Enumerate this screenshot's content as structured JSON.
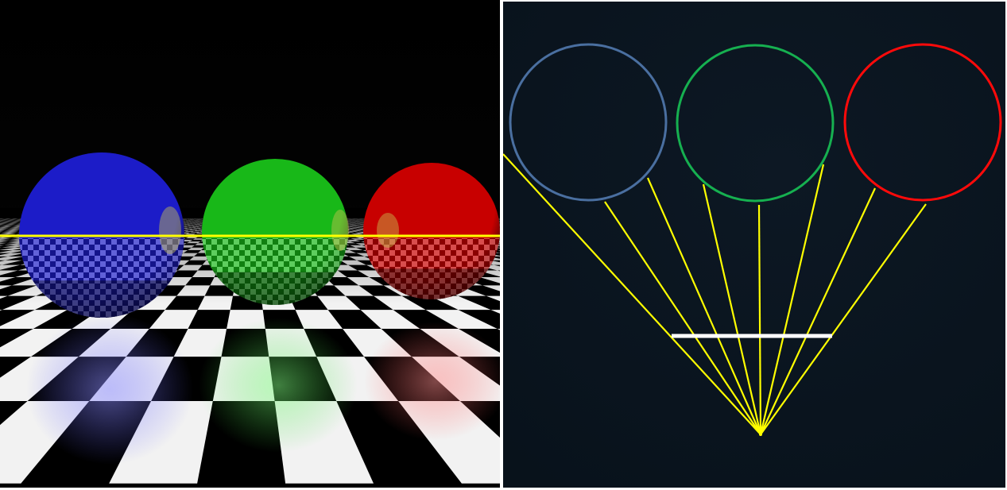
{
  "scene": {
    "spheres": [
      {
        "name": "blue-sphere",
        "color": "#1c1cc8"
      },
      {
        "name": "green-sphere",
        "color": "#18b818"
      },
      {
        "name": "red-sphere",
        "color": "#c80000"
      }
    ],
    "floor_colors": {
      "light": "#f2f2f2",
      "dark": "#000000"
    },
    "scanline_color": "#ffff00"
  },
  "diagram": {
    "background": "#0a1520",
    "circles": [
      {
        "name": "blue-circle",
        "color": "#4a6fa0"
      },
      {
        "name": "green-circle",
        "color": "#16b050"
      },
      {
        "name": "red-circle",
        "color": "#ff0a0a"
      }
    ],
    "ray_color": "#ffff00",
    "image_plane_color": "#ffffff",
    "ray_count": 8
  }
}
